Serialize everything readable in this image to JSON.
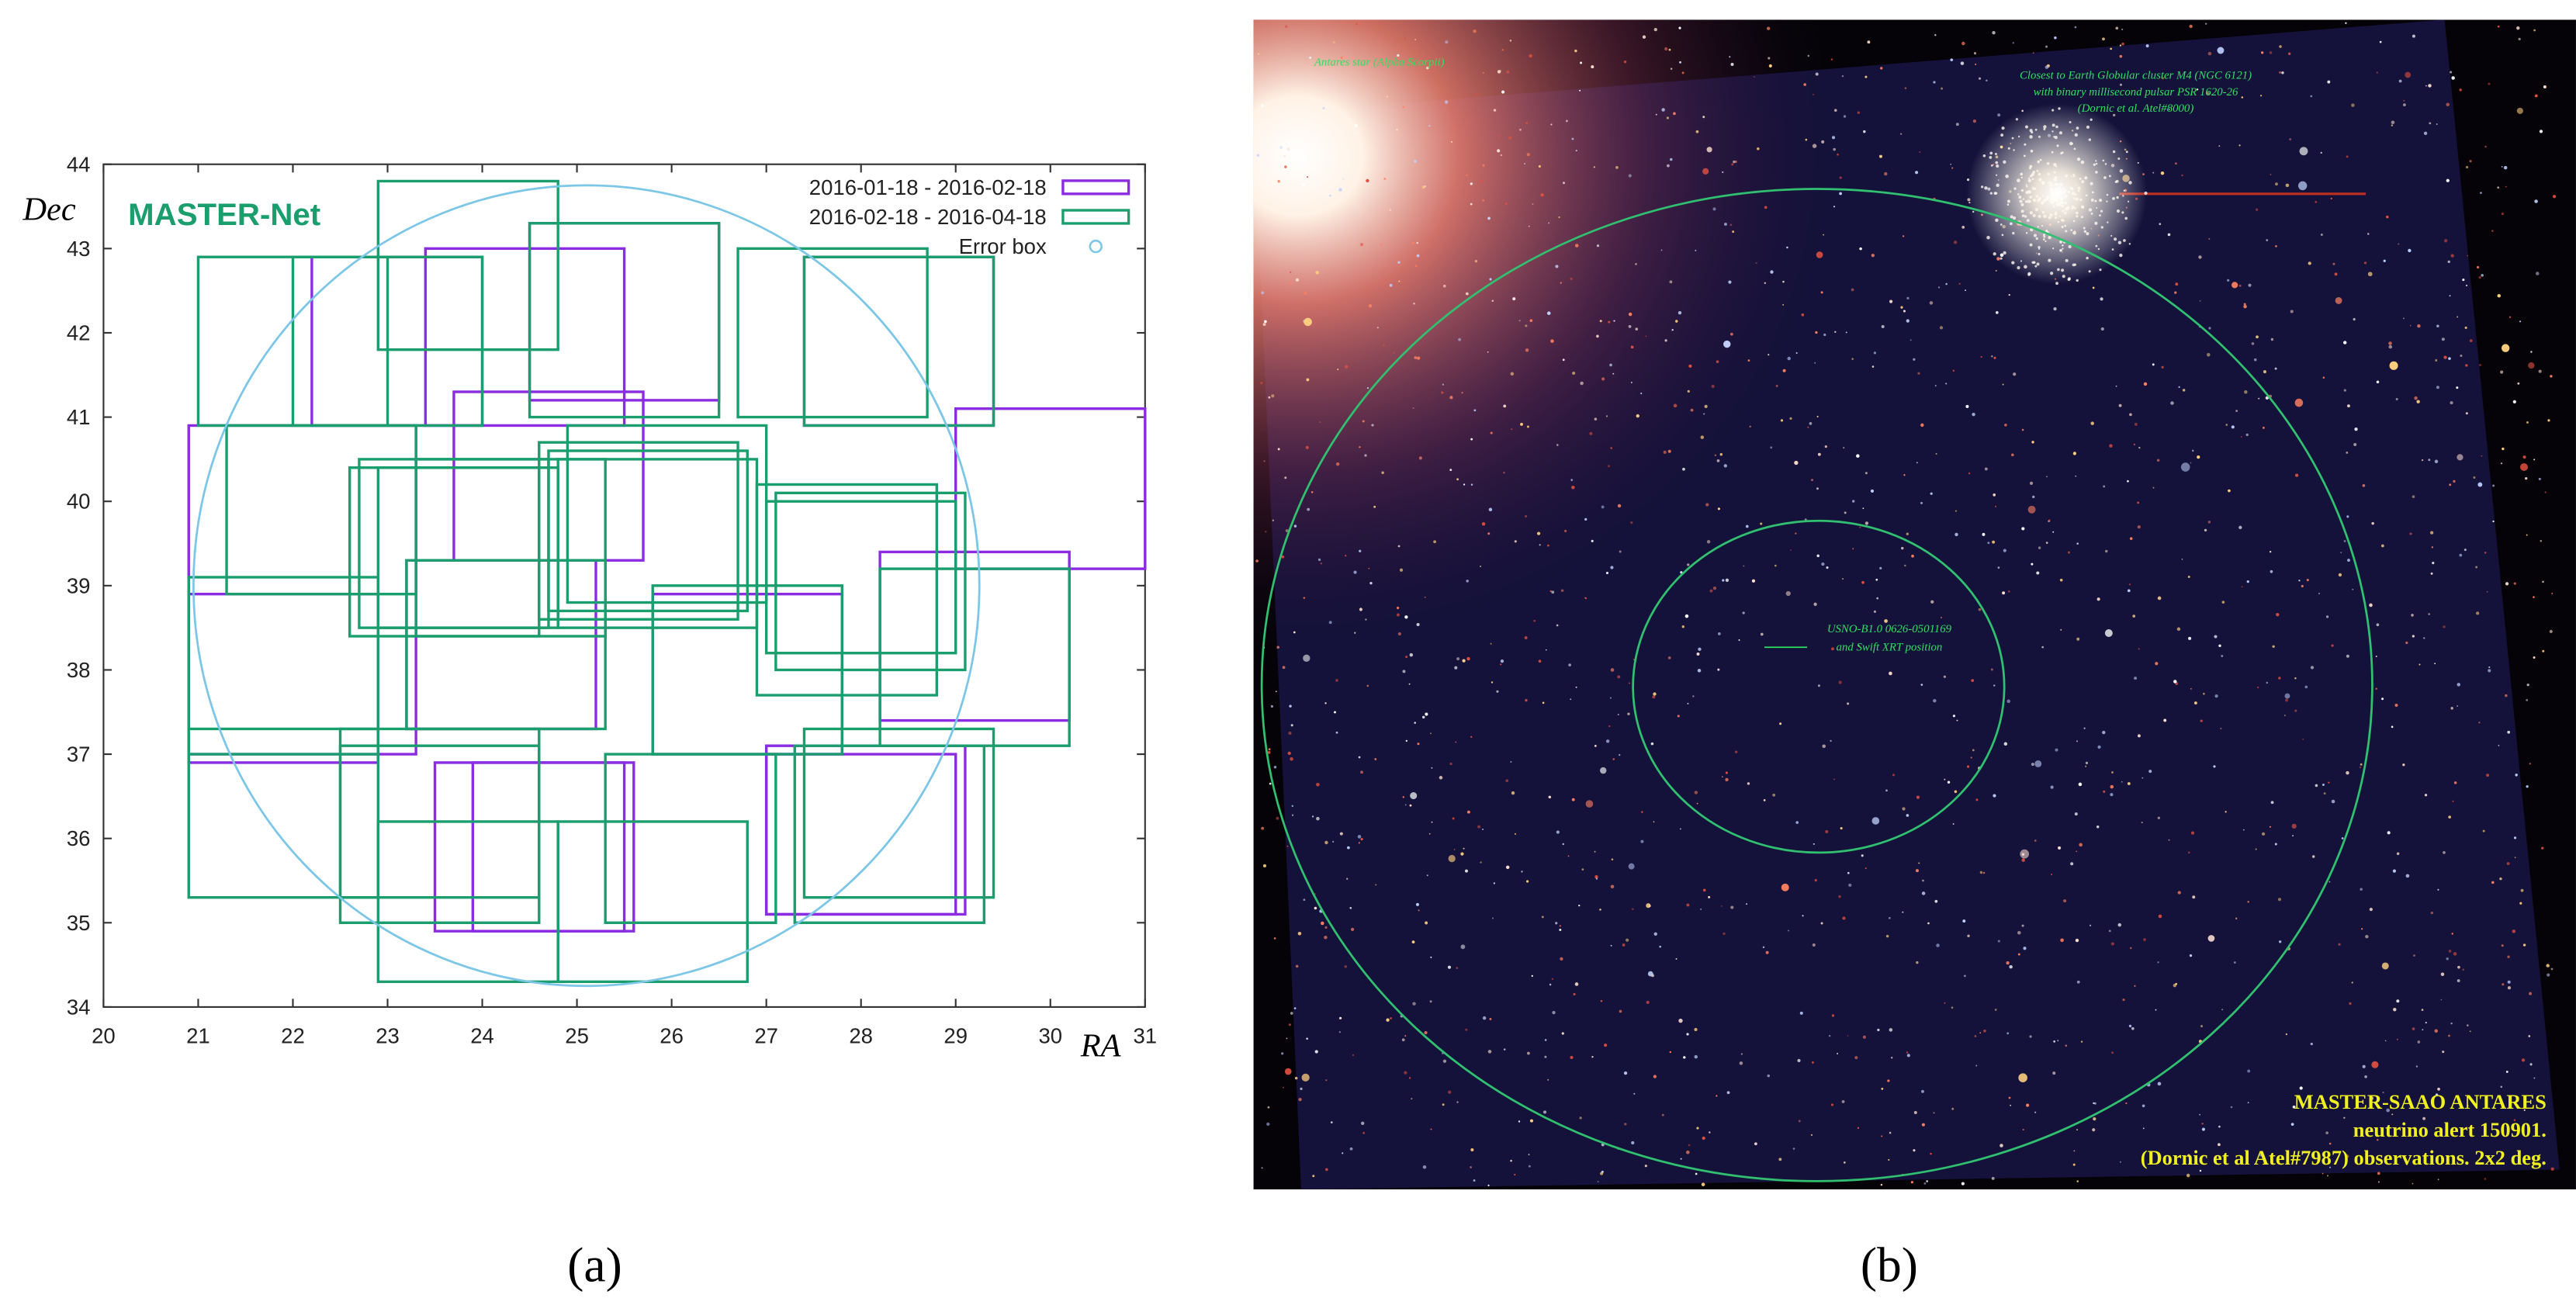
{
  "panel_labels": [
    "(a)",
    "(b)"
  ],
  "chart_data": {
    "type": "rectangles",
    "title": "MASTER-Net",
    "xlabel": "RA",
    "ylabel": "Dec",
    "xlim": [
      20,
      31
    ],
    "ylim": [
      34,
      44
    ],
    "xticks": [
      20,
      21,
      22,
      23,
      24,
      25,
      26,
      27,
      28,
      29,
      30,
      31
    ],
    "yticks": [
      34,
      35,
      36,
      37,
      38,
      39,
      40,
      41,
      42,
      43,
      44
    ],
    "legend": "upper right",
    "series": [
      {
        "name": "2016-01-18 - 2016-02-18",
        "color": "#8b2be2",
        "x": [
          [
            22.2,
            24.0
          ],
          [
            23.4,
            25.5
          ],
          [
            24.5,
            26.5
          ],
          [
            23.7,
            25.7
          ],
          [
            20.9,
            23.3
          ],
          [
            29.0,
            31.0
          ],
          [
            28.2,
            30.2
          ],
          [
            20.9,
            22.9
          ],
          [
            23.5,
            25.6
          ],
          [
            27.0,
            29.1
          ],
          [
            27.4,
            29.4
          ],
          [
            23.2,
            25.2
          ],
          [
            25.8,
            27.8
          ],
          [
            23.9,
            25.5
          ],
          [
            27.0,
            29.0
          ]
        ],
        "values": [
          [
            40.9,
            42.9
          ],
          [
            40.9,
            43.0
          ],
          [
            41.2,
            43.3
          ],
          [
            39.3,
            41.3
          ],
          [
            37.0,
            40.9
          ],
          [
            39.2,
            41.1
          ],
          [
            37.4,
            39.4
          ],
          [
            36.9,
            38.9
          ],
          [
            34.9,
            36.9
          ],
          [
            35.1,
            37.1
          ],
          [
            40.9,
            42.9
          ],
          [
            37.3,
            39.3
          ],
          [
            37.0,
            38.9
          ],
          [
            34.9,
            36.9
          ],
          [
            35.1,
            37.0
          ]
        ]
      },
      {
        "name": "2016-02-18 - 2016-04-18",
        "color": "#1a9e6e",
        "x": [
          [
            21.3,
            23.3
          ],
          [
            22.0,
            24.0
          ],
          [
            21.0,
            23.0
          ],
          [
            22.9,
            24.8
          ],
          [
            24.5,
            26.5
          ],
          [
            26.7,
            28.7
          ],
          [
            27.4,
            29.4
          ],
          [
            22.6,
            24.6
          ],
          [
            22.9,
            24.8
          ],
          [
            23.3,
            25.3
          ],
          [
            24.6,
            26.7
          ],
          [
            24.9,
            27.0
          ],
          [
            24.7,
            26.8
          ],
          [
            24.8,
            26.9
          ],
          [
            27.1,
            29.1
          ],
          [
            26.9,
            28.8
          ],
          [
            28.2,
            30.2
          ],
          [
            23.2,
            25.3
          ],
          [
            25.8,
            27.8
          ],
          [
            22.5,
            24.6
          ],
          [
            20.9,
            22.9
          ],
          [
            22.9,
            24.8
          ],
          [
            24.8,
            26.8
          ],
          [
            25.3,
            27.1
          ],
          [
            27.3,
            29.3
          ],
          [
            27.4,
            29.4
          ],
          [
            22.5,
            24.6
          ],
          [
            20.9,
            22.9
          ],
          [
            22.7,
            24.7
          ],
          [
            27.0,
            29.0
          ]
        ],
        "values": [
          [
            38.9,
            40.9
          ],
          [
            40.9,
            42.9
          ],
          [
            40.9,
            42.9
          ],
          [
            41.8,
            43.8
          ],
          [
            41.0,
            43.3
          ],
          [
            41.0,
            43.0
          ],
          [
            40.9,
            42.9
          ],
          [
            38.4,
            40.4
          ],
          [
            38.5,
            40.4
          ],
          [
            38.4,
            40.5
          ],
          [
            38.6,
            40.7
          ],
          [
            38.8,
            40.9
          ],
          [
            38.7,
            40.6
          ],
          [
            38.5,
            40.5
          ],
          [
            38.0,
            40.1
          ],
          [
            37.7,
            40.2
          ],
          [
            37.1,
            39.2
          ],
          [
            37.3,
            39.3
          ],
          [
            37.0,
            39.0
          ],
          [
            35.3,
            37.3
          ],
          [
            35.3,
            37.3
          ],
          [
            34.3,
            36.2
          ],
          [
            34.3,
            36.2
          ],
          [
            35.0,
            37.0
          ],
          [
            35.0,
            37.1
          ],
          [
            35.3,
            37.3
          ],
          [
            35.0,
            37.1
          ],
          [
            37.0,
            39.1
          ],
          [
            38.5,
            40.5
          ],
          [
            38.2,
            40.0
          ]
        ]
      }
    ],
    "error_box": {
      "name": "Error box",
      "color": "#7cc6e8",
      "x": 25.1,
      "y": 39.0,
      "rx": 4.15,
      "ry": 4.75
    }
  },
  "image_b": {
    "annotations": [
      "Antares star (Alpha Scorpii)",
      "Closest to Earth Globular cluster M4 (NGC 6121)",
      "with binary millisecond pulsar PSR 1620-26",
      "(Dornic et al. Atel#8000)",
      "USNO-B1.0 0626-0501169",
      "and Swift XRT position"
    ],
    "caption": [
      "MASTER-SAAO ANTARES",
      "neutrino alert 150901.",
      "(Dornic et al Atel#7987)  observations. 2x2 deg."
    ]
  }
}
